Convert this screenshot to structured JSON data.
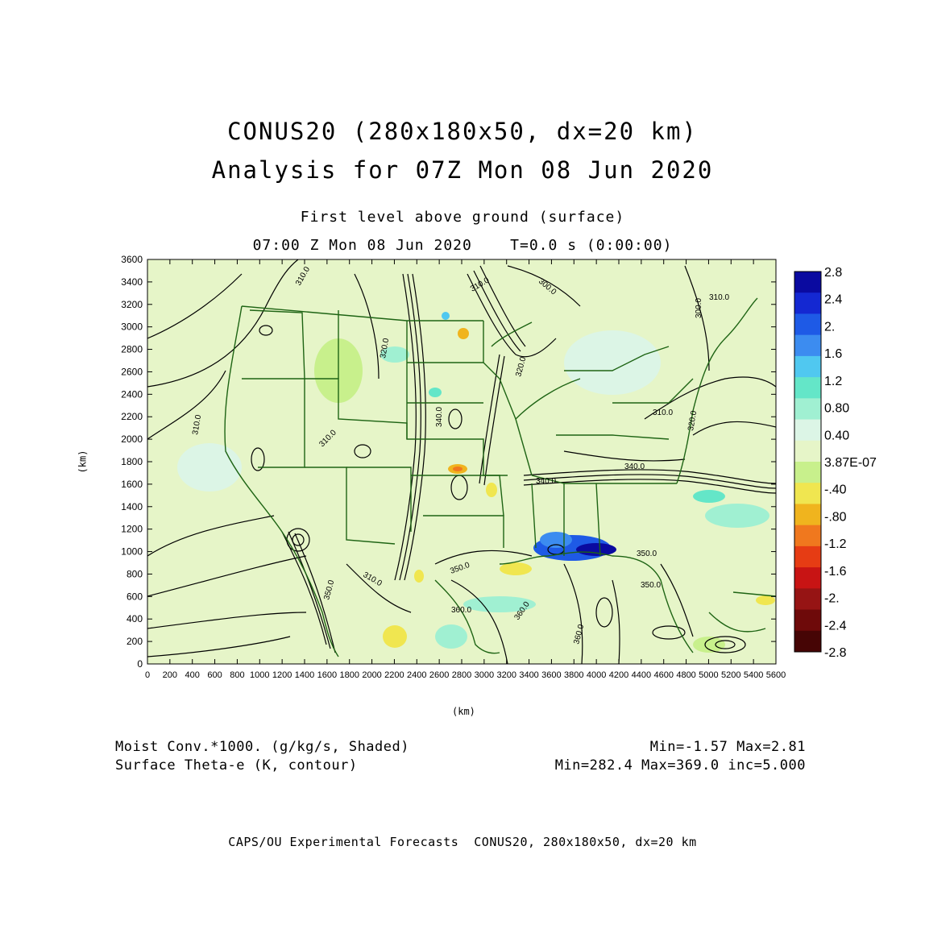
{
  "title": {
    "line1": "CONUS20 (280x180x50, dx=20 km)",
    "line2": "Analysis for 07Z Mon 08 Jun 2020"
  },
  "subtitle": {
    "level": "First level above ground (surface)",
    "time": "07:00 Z Mon 08 Jun 2020    T=0.0 s (0:00:00)"
  },
  "axes": {
    "x_unit": "(km)",
    "y_unit": "(km)",
    "x_ticks": [
      "0",
      "200",
      "400",
      "600",
      "800",
      "1000",
      "1200",
      "1400",
      "1600",
      "1800",
      "2000",
      "2200",
      "2400",
      "2600",
      "2800",
      "3000",
      "3200",
      "3400",
      "3600",
      "3800",
      "4000",
      "4200",
      "4400",
      "4600",
      "4800",
      "5000",
      "5200",
      "5400",
      "5600"
    ],
    "y_ticks": [
      "0",
      "200",
      "400",
      "600",
      "800",
      "1000",
      "1200",
      "1400",
      "1600",
      "1800",
      "2000",
      "2200",
      "2400",
      "2600",
      "2800",
      "3000",
      "3200",
      "3400",
      "3600"
    ],
    "x_range": [
      0,
      5600
    ],
    "y_range": [
      0,
      3600
    ]
  },
  "colorbar": {
    "labels": [
      "2.8",
      "2.4",
      "2.",
      "1.6",
      "1.2",
      "0.80",
      "0.40",
      "3.87E-07",
      "-.40",
      "-.80",
      "-1.2",
      "-1.6",
      "-2.",
      "-2.4",
      "-2.8"
    ],
    "colors": [
      "#0a0aa0",
      "#1428d2",
      "#1e5ae6",
      "#3c8cf0",
      "#50c8f0",
      "#64e6c8",
      "#a0f0d2",
      "#dcf5e6",
      "#e6f5c8",
      "#c8f08c",
      "#f0e650",
      "#f0b41e",
      "#f0781e",
      "#e63c14",
      "#c81414",
      "#961414",
      "#6e0a0a",
      "#460505"
    ]
  },
  "info": {
    "shaded_field": "Moist Conv.*1000. (g/kg/s, Shaded)",
    "contour_field": "Surface Theta-e (K, contour)",
    "shaded_range": "Min=-1.57 Max=2.81",
    "contour_range": "Min=282.4 Max=369.0 inc=5.000"
  },
  "contour_labels": [
    "310.0",
    "310.0",
    "300.0",
    "300.0",
    "320.0",
    "340.0",
    "310.0",
    "310.0",
    "320.0",
    "310.0",
    "320.0",
    "340.0",
    "340.0",
    "310.0",
    "310.0",
    "350.0",
    "350.0",
    "360.0",
    "360.0",
    "360.0",
    "350.0",
    "350.0"
  ],
  "footer": "CAPS/OU Experimental Forecasts  CONUS20, 280x180x50, dx=20 km",
  "style": {
    "map_background": "#e6f5c8",
    "contour_color": "#000000",
    "boundary_color": "#1e6414"
  }
}
